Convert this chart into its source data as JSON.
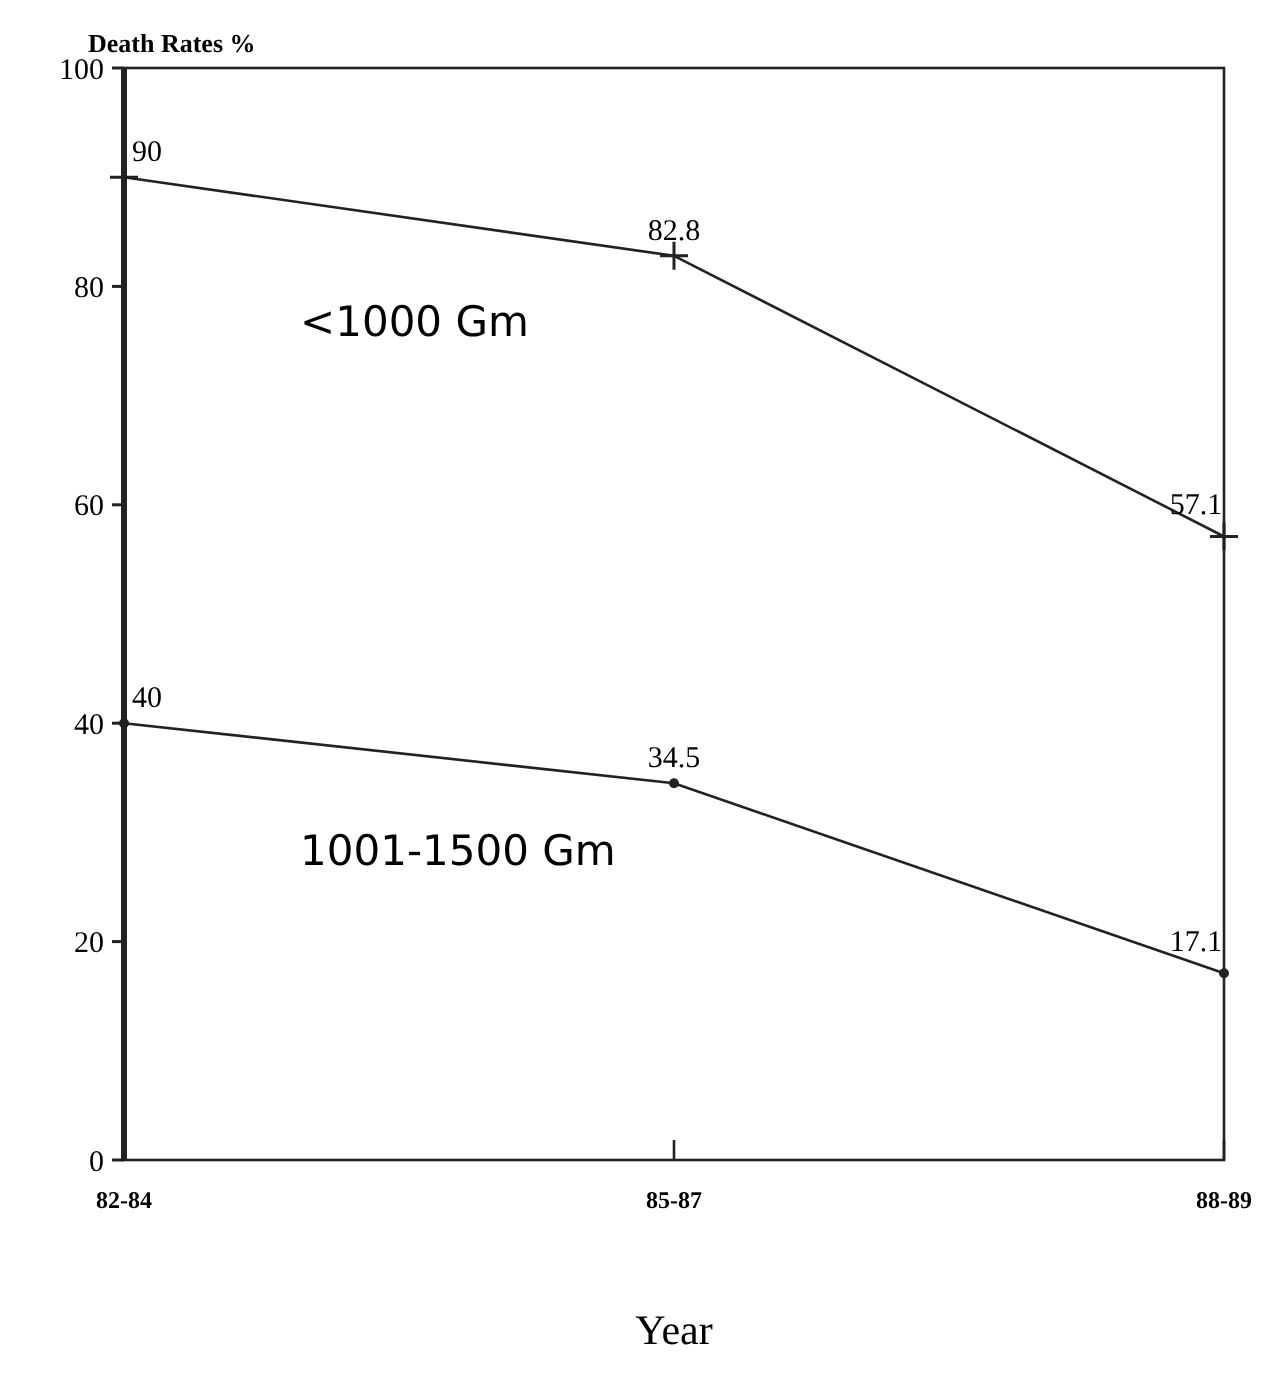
{
  "chart_data": {
    "type": "line",
    "ylabel": "Death Rates %",
    "xlabel": "Year",
    "categories": [
      "82-84",
      "85-87",
      "88-89"
    ],
    "ylim": [
      0,
      100
    ],
    "yticks": [
      0,
      20,
      40,
      60,
      80,
      100
    ],
    "grid": false,
    "data_labels": true,
    "line_style": "solid",
    "series": [
      {
        "name": "<1000 Gm",
        "color": "#222222",
        "marker": "cross",
        "values": [
          90,
          82.8,
          57.1
        ]
      },
      {
        "name": "1001-1500 Gm",
        "color": "#222222",
        "marker": "circle",
        "values": [
          40,
          34.5,
          17.1
        ]
      }
    ]
  }
}
